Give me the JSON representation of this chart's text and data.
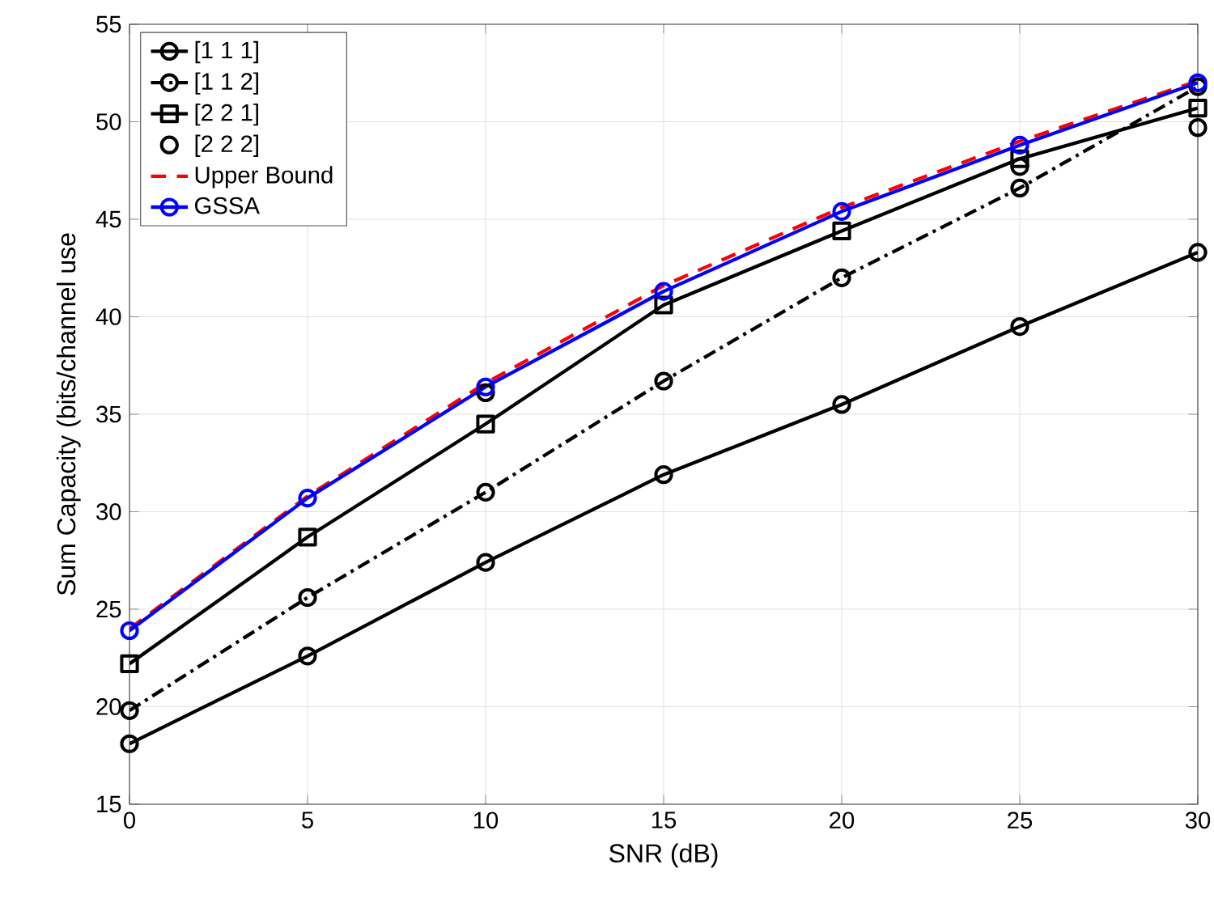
{
  "chart_data": {
    "type": "line",
    "xlabel": "SNR (dB)",
    "ylabel": "Sum Capacity (bits/channel use",
    "x": [
      0,
      5,
      10,
      15,
      20,
      25,
      30
    ],
    "xlim": [
      0,
      30
    ],
    "xticks": [
      0,
      5,
      10,
      15,
      20,
      25,
      30
    ],
    "ylim": [
      15,
      55
    ],
    "yticks": [
      15,
      20,
      25,
      30,
      35,
      40,
      45,
      50,
      55
    ],
    "grid": true,
    "legend": "top left",
    "series": [
      {
        "name": "[1 1 1]",
        "color": "#000000",
        "marker": "circle",
        "line_style": "solid",
        "values": [
          18.1,
          22.6,
          27.4,
          31.9,
          35.5,
          39.5,
          43.3
        ]
      },
      {
        "name": "[1 1 2]",
        "color": "#000000",
        "marker": "circle",
        "line_style": "dashdot",
        "values": [
          19.8,
          25.6,
          31.0,
          36.7,
          42.0,
          46.6,
          51.8
        ]
      },
      {
        "name": "[2 2 1]",
        "color": "#000000",
        "marker": "square",
        "line_style": "solid",
        "values": [
          22.2,
          28.7,
          34.5,
          40.6,
          44.4,
          48.1,
          50.7
        ]
      },
      {
        "name": "[2 2 2]",
        "type": "scatter",
        "color": "#000000",
        "marker": "circle",
        "values": [
          null,
          null,
          36.1,
          null,
          null,
          47.7,
          49.7
        ]
      },
      {
        "name": "Upper Bound",
        "color": "#ff0000",
        "marker": "none",
        "line_style": "dashed",
        "values": [
          24.0,
          30.8,
          36.6,
          41.6,
          45.6,
          49.0,
          52.1
        ]
      },
      {
        "name": "GSSA",
        "color": "#0000ff",
        "marker": "circle",
        "line_style": "solid",
        "values": [
          23.9,
          30.7,
          36.4,
          41.3,
          45.4,
          48.8,
          52.0
        ]
      }
    ]
  }
}
